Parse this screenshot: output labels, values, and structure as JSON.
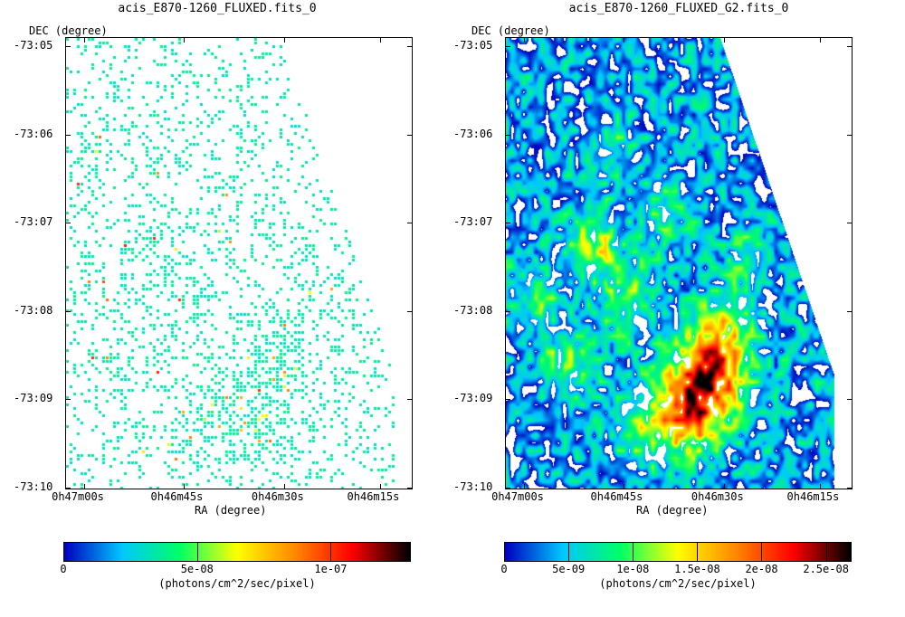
{
  "panels": [
    {
      "title": "acis_E870-1260_FLUXED.fits_0",
      "ylabel": "DEC (degree)",
      "xlabel": "RA (degree)",
      "colorbar_unit": "(photons/cm^2/sec/pixel)"
    },
    {
      "title": "acis_E870-1260_FLUXED_G2.fits_0",
      "ylabel": "DEC (degree)",
      "xlabel": "RA (degree)",
      "colorbar_unit": "(photons/cm^2/sec/pixel)"
    }
  ],
  "chart_data": [
    {
      "type": "heatmap",
      "title": "acis_E870-1260_FLUXED.fits_0",
      "xlabel": "RA (degree)",
      "ylabel": "DEC (degree)",
      "x_ticks": [
        "0h47m00s",
        "0h46m45s",
        "0h46m30s",
        "0h46m15s"
      ],
      "y_ticks": [
        "-73:05",
        "-73:06",
        "-73:07",
        "-73:08",
        "-73:09",
        "-73:10"
      ],
      "colorbar": {
        "min": 0,
        "max": 1.3e-07,
        "ticks": [
          "0",
          "5e-08",
          "1e-07"
        ],
        "tick_values": [
          0,
          5e-08,
          1e-07
        ]
      },
      "colormap": [
        "#ffffff",
        "#0000c0",
        "#00c8ff",
        "#00ff66",
        "#ffff00",
        "#ff8800",
        "#ff0000",
        "#000000"
      ],
      "sparse_points": true,
      "peak_region_dec": "-73:09",
      "peak_region_ra": "0h46m35s"
    },
    {
      "type": "heatmap",
      "title": "acis_E870-1260_FLUXED_G2.fits_0",
      "xlabel": "RA (degree)",
      "ylabel": "DEC (degree)",
      "x_ticks": [
        "0h47m00s",
        "0h46m45s",
        "0h46m30s",
        "0h46m15s"
      ],
      "y_ticks": [
        "-73:05",
        "-73:06",
        "-73:07",
        "-73:08",
        "-73:09",
        "-73:10"
      ],
      "colorbar": {
        "min": 0,
        "max": 2.7e-08,
        "ticks": [
          "0",
          "5e-09",
          "1e-08",
          "1.5e-08",
          "2e-08",
          "2.5e-08"
        ],
        "tick_values": [
          0,
          5e-09,
          1e-08,
          1.5e-08,
          2e-08,
          2.5e-08
        ]
      },
      "colormap": [
        "#ffffff",
        "#0000c0",
        "#00c8ff",
        "#00ff66",
        "#ffff00",
        "#ff8800",
        "#ff0000",
        "#000000"
      ],
      "smoothed": true,
      "peak_value": 2.6e-08,
      "peak_region_dec": "-73:09",
      "peak_region_ra": "0h46m35s"
    }
  ]
}
